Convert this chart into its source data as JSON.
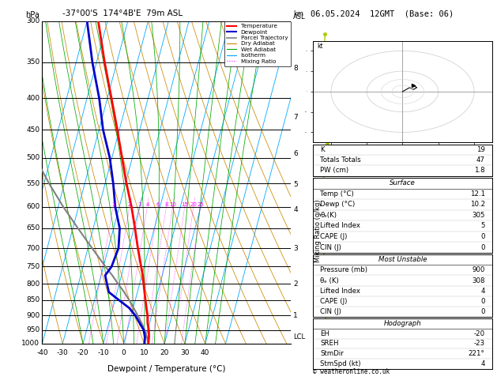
{
  "title_left": "-37°00'S  174°4B'E  79m ASL",
  "title_right": "06.05.2024  12GMT  (Base: 06)",
  "xlabel": "Dewpoint / Temperature (°C)",
  "pressure_levels": [
    300,
    350,
    400,
    450,
    500,
    550,
    600,
    650,
    700,
    750,
    800,
    850,
    900,
    950,
    1000
  ],
  "temp_profile_p": [
    1000,
    975,
    950,
    925,
    900,
    875,
    850,
    825,
    800,
    775,
    750,
    700,
    650,
    600,
    550,
    500,
    450,
    400,
    350,
    300
  ],
  "temp_profile_t": [
    12.1,
    11.5,
    10.5,
    9.0,
    8.0,
    6.5,
    5.0,
    3.5,
    2.0,
    0.5,
    -1.5,
    -5.5,
    -9.5,
    -14.0,
    -19.5,
    -25.0,
    -31.0,
    -38.0,
    -46.0,
    -54.5
  ],
  "dewp_profile_p": [
    1000,
    975,
    950,
    925,
    900,
    875,
    850,
    825,
    800,
    775,
    750,
    700,
    650,
    600,
    550,
    500,
    450,
    400,
    350,
    300
  ],
  "dewp_profile_t": [
    10.2,
    9.5,
    8.0,
    5.0,
    2.0,
    -2.0,
    -8.0,
    -14.0,
    -16.0,
    -18.0,
    -16.0,
    -15.0,
    -17.0,
    -22.0,
    -26.0,
    -31.0,
    -38.0,
    -44.0,
    -52.0,
    -60.0
  ],
  "parcel_profile_p": [
    1000,
    975,
    950,
    925,
    900,
    875,
    850,
    825,
    800,
    775,
    750,
    700,
    650,
    600,
    550,
    500,
    450,
    400,
    350,
    300
  ],
  "parcel_profile_t": [
    12.1,
    10.5,
    8.5,
    6.0,
    3.2,
    0.2,
    -3.0,
    -6.5,
    -10.5,
    -14.5,
    -19.0,
    -28.0,
    -37.5,
    -47.5,
    -57.5,
    -67.5,
    -77.5,
    -87.5,
    -97.5,
    -107.5
  ],
  "skew_factor": 42,
  "x_min": -40,
  "x_max": 40,
  "mixing_ratio_values": [
    1,
    2,
    3,
    4,
    6,
    8,
    10,
    15,
    20,
    25
  ],
  "km_labels": [
    "8",
    "7",
    "6",
    "5",
    "4",
    "3",
    "2",
    "1"
  ],
  "km_pressures": [
    358,
    430,
    492,
    552,
    606,
    700,
    800,
    900
  ],
  "lcl_pressure": 975,
  "bg_color": "#ffffff",
  "temp_color": "#ff0000",
  "dewp_color": "#0000cc",
  "parcel_color": "#808080",
  "dry_adiabat_color": "#cc8800",
  "wet_adiabat_color": "#00aa00",
  "isotherm_color": "#00aaff",
  "mixing_color": "#ff00ff",
  "wind_color": "#aacc00",
  "wind_x": [
    0.5,
    0.4,
    0.6,
    0.3,
    0.5,
    0.7,
    0.4,
    0.3,
    0.55,
    0.45,
    0.35,
    0.5,
    0.4,
    0.6,
    0.5
  ],
  "wind_y": [
    0.96,
    0.9,
    0.83,
    0.76,
    0.69,
    0.62,
    0.55,
    0.48,
    0.42,
    0.36,
    0.29,
    0.22,
    0.16,
    0.09,
    0.04
  ],
  "stats_K": 19,
  "stats_TT": 47,
  "stats_PW": 1.8,
  "stats_surf_temp": 12.1,
  "stats_surf_dewp": 10.2,
  "stats_surf_thetae": 305,
  "stats_surf_LI": 5,
  "stats_surf_CAPE": 0,
  "stats_surf_CIN": 0,
  "stats_mu_pres": 900,
  "stats_mu_thetae": 308,
  "stats_mu_LI": 4,
  "stats_mu_CAPE": 0,
  "stats_mu_CIN": 0,
  "stats_EH": -20,
  "stats_SREH": -23,
  "stats_StmDir": 221,
  "stats_StmSpd": 4
}
